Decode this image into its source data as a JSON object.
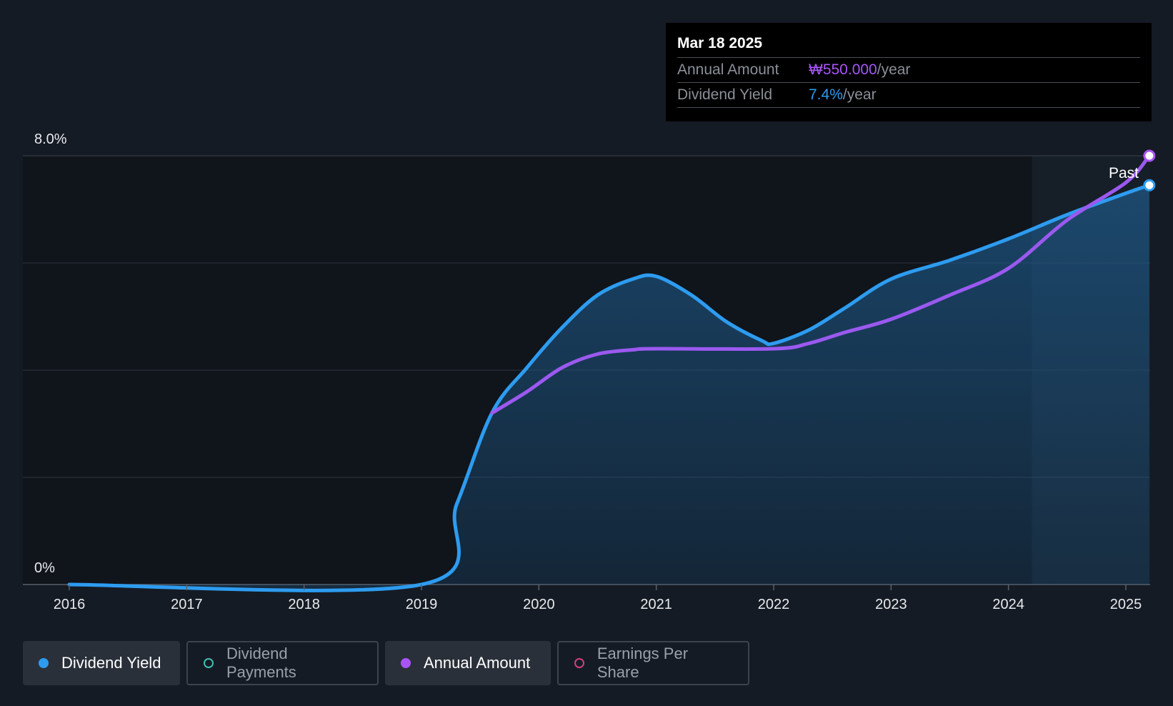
{
  "tooltip": {
    "date": "Mar 18 2025",
    "annual_label": "Annual Amount",
    "annual_value": "₩550.000",
    "annual_unit": "/year",
    "yield_label": "Dividend Yield",
    "yield_value": "7.4%",
    "yield_unit": "/year"
  },
  "past_label": "Past",
  "legend": [
    {
      "label": "Dividend Yield",
      "color": "#2d9cf0",
      "active": true,
      "filled": true
    },
    {
      "label": "Dividend Payments",
      "color": "#3fbfb0",
      "active": false,
      "filled": false
    },
    {
      "label": "Annual Amount",
      "color": "#a855f7",
      "active": true,
      "filled": true
    },
    {
      "label": "Earnings Per Share",
      "color": "#d0407a",
      "active": false,
      "filled": false
    }
  ],
  "chart_data": {
    "type": "line",
    "x_ticks": [
      "2016",
      "2017",
      "2018",
      "2019",
      "2020",
      "2021",
      "2022",
      "2023",
      "2024",
      "2025"
    ],
    "y_tick_labels": [
      "8.0%",
      "0%"
    ],
    "ylim": [
      0,
      8
    ],
    "xlim": [
      2015.6,
      2025.2
    ],
    "grid": true,
    "series": [
      {
        "name": "Dividend Yield",
        "color": "#2d9cf0",
        "points": [
          [
            2016.0,
            0
          ],
          [
            2019.0,
            0
          ],
          [
            2019.3,
            1.5
          ],
          [
            2019.6,
            3.2
          ],
          [
            2019.9,
            4.05
          ],
          [
            2020.2,
            4.8
          ],
          [
            2020.5,
            5.4
          ],
          [
            2020.8,
            5.7
          ],
          [
            2021.0,
            5.75
          ],
          [
            2021.3,
            5.4
          ],
          [
            2021.6,
            4.9
          ],
          [
            2021.9,
            4.55
          ],
          [
            2022.0,
            4.5
          ],
          [
            2022.3,
            4.75
          ],
          [
            2022.6,
            5.15
          ],
          [
            2023.0,
            5.7
          ],
          [
            2023.5,
            6.05
          ],
          [
            2024.0,
            6.45
          ],
          [
            2024.5,
            6.9
          ],
          [
            2025.0,
            7.3
          ],
          [
            2025.2,
            7.45
          ]
        ]
      },
      {
        "name": "Annual Amount",
        "color": "#a855f7",
        "points": [
          [
            2019.6,
            3.2
          ],
          [
            2019.9,
            3.6
          ],
          [
            2020.2,
            4.05
          ],
          [
            2020.5,
            4.3
          ],
          [
            2020.8,
            4.38
          ],
          [
            2021.0,
            4.4
          ],
          [
            2022.0,
            4.4
          ],
          [
            2022.3,
            4.5
          ],
          [
            2022.6,
            4.7
          ],
          [
            2023.0,
            4.95
          ],
          [
            2023.5,
            5.4
          ],
          [
            2024.0,
            5.9
          ],
          [
            2024.5,
            6.8
          ],
          [
            2025.0,
            7.5
          ],
          [
            2025.2,
            8.0
          ]
        ]
      }
    ],
    "forecast_region_start": 2024.2
  }
}
